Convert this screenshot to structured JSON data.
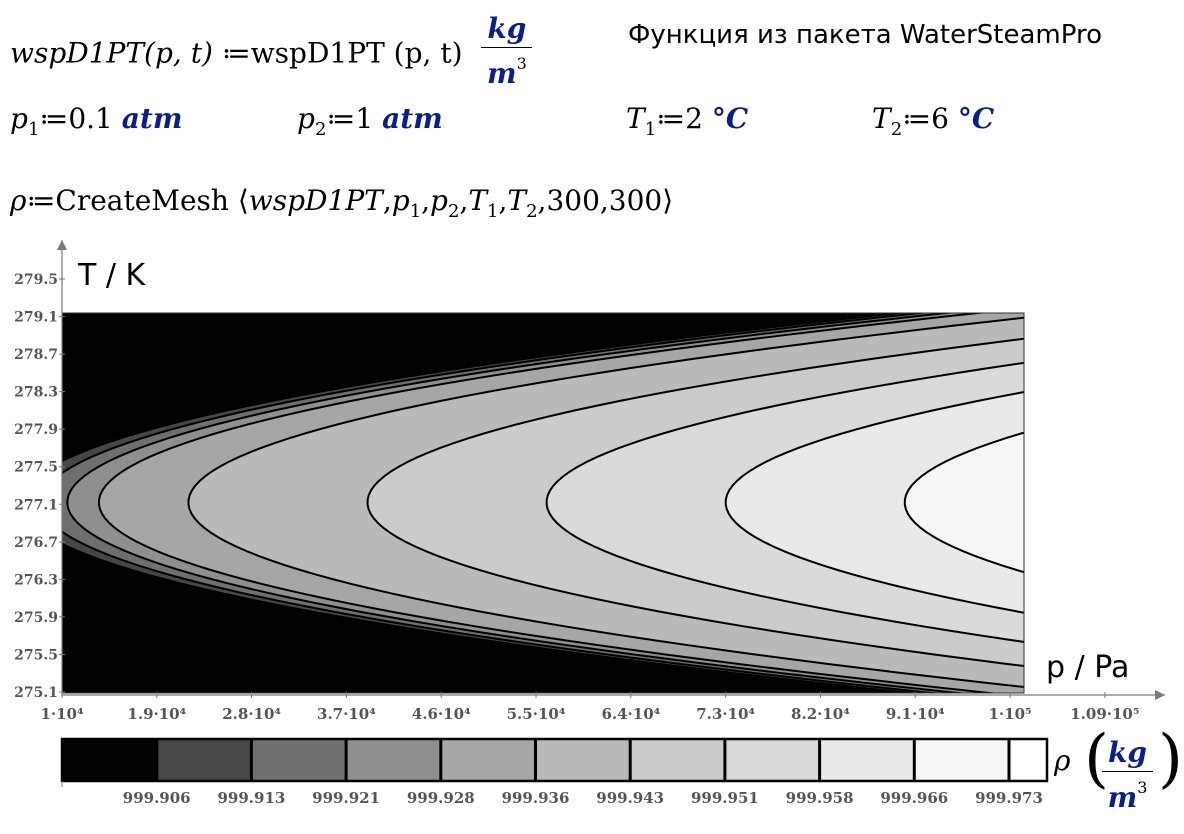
{
  "definitions": {
    "func_def_left": "wspD1PT",
    "func_args_left": "(p, t)",
    "assign": "≔",
    "func_def_right": "wspD1PT",
    "func_args_right": "(p, t)",
    "unit_num": "kg",
    "unit_den": "m",
    "unit_exp": "3",
    "note": "Функция из пакета WaterSteamPro"
  },
  "params": [
    {
      "sym": "p",
      "sub": "1",
      "value": "0.1",
      "unit": "atm"
    },
    {
      "sym": "p",
      "sub": "2",
      "value": "1",
      "unit": "atm"
    },
    {
      "sym": "T",
      "sub": "1",
      "value": "2",
      "unit": "°C"
    },
    {
      "sym": "T",
      "sub": "2",
      "value": "6",
      "unit": "°C"
    }
  ],
  "mesh": {
    "lhs": "ρ",
    "func": "CreateMesh",
    "args": "wspD1PT , p",
    "arg_text": [
      "wspD1PT",
      ",",
      "p",
      "1",
      ",",
      "p",
      "2",
      ",",
      "T",
      "1",
      ",",
      "T",
      "2",
      ",",
      "300",
      ",",
      "300"
    ]
  },
  "chart_data": {
    "type": "heatmap",
    "subtype": "contour",
    "xlabel": "p / Pa",
    "ylabel": "T / K",
    "x_ticks": [
      "1·10⁴",
      "1.9·10⁴",
      "2.8·10⁴",
      "3.7·10⁴",
      "4.6·10⁴",
      "5.5·10⁴",
      "6.4·10⁴",
      "7.3·10⁴",
      "8.2·10⁴",
      "9.1·10⁴",
      "1·10⁵",
      "1.09·10⁵"
    ],
    "x_tick_values": [
      10000,
      19000,
      28000,
      37000,
      46000,
      55000,
      64000,
      73000,
      82000,
      91000,
      100000,
      109000
    ],
    "y_ticks": [
      "275.1",
      "275.5",
      "275.9",
      "276.3",
      "276.7",
      "277.1",
      "277.5",
      "277.9",
      "278.3",
      "278.7",
      "279.1",
      "279.5"
    ],
    "y_tick_values": [
      275.1,
      275.5,
      275.9,
      276.3,
      276.7,
      277.1,
      277.5,
      277.9,
      278.3,
      278.7,
      279.1,
      279.5
    ],
    "xlim": [
      10000,
      101325
    ],
    "ylim": [
      275.15,
      279.15
    ],
    "colorbar_label": "ρ",
    "colorbar_unit_num": "kg",
    "colorbar_unit_den": "m",
    "colorbar_unit_exp": "3",
    "levels": [
      "999.906",
      "999.913",
      "999.921",
      "999.928",
      "999.936",
      "999.943",
      "999.951",
      "999.958",
      "999.966",
      "999.973"
    ],
    "level_colors": [
      "#000000",
      "#464646",
      "#6f6f6f",
      "#8f8f8f",
      "#a6a6a6",
      "#bababa",
      "#cbcbcb",
      "#dadada",
      "#e9e9e9",
      "#f6f6f6",
      "#ffffff"
    ],
    "colormap": "grayscale"
  }
}
